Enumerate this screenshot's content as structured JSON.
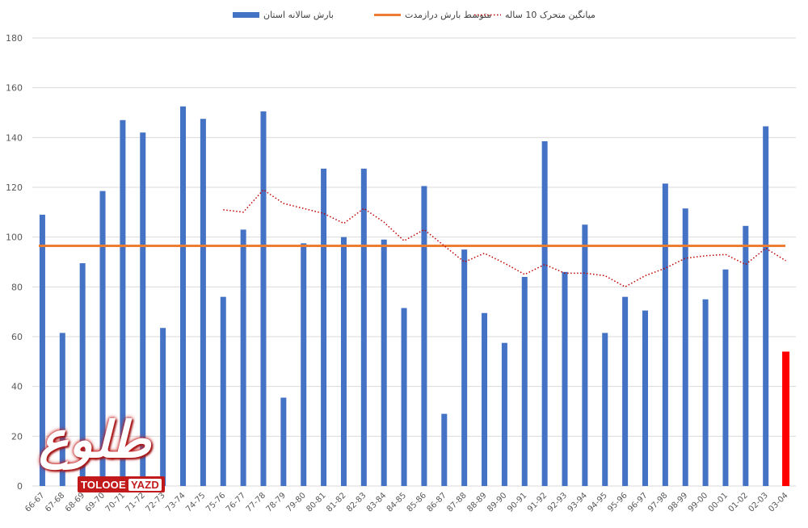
{
  "chart_data": {
    "type": "bar",
    "ylim": [
      0,
      180
    ],
    "yticks": [
      0,
      20,
      40,
      60,
      80,
      100,
      120,
      140,
      160,
      180
    ],
    "grid": true,
    "legend_position": "top",
    "categories": [
      "66-67",
      "67-68",
      "68-69",
      "69-70",
      "70-71",
      "71-72",
      "72-73",
      "73-74",
      "74-75",
      "75-76",
      "76-77",
      "77-78",
      "78-79",
      "79-80",
      "80-81",
      "81-82",
      "82-83",
      "83-84",
      "84-85",
      "85-86",
      "86-87",
      "87-88",
      "88-89",
      "89-90",
      "90-91",
      "91-92",
      "92-93",
      "93-94",
      "94-95",
      "95-96",
      "96-97",
      "97-98",
      "98-99",
      "99-00",
      "00-01",
      "01-02",
      "02-03",
      "03-04"
    ],
    "series": [
      {
        "name": "بارش سالانه استان",
        "kind": "bar",
        "color": "#4472c4",
        "highlight_last_color": "#ff0000",
        "values": [
          109,
          61.5,
          89.5,
          118.5,
          147,
          142,
          63.5,
          152.5,
          147.5,
          76,
          103,
          150.5,
          35.5,
          97.5,
          127.5,
          100,
          127.5,
          99,
          71.5,
          120.5,
          29,
          95,
          69.5,
          57.5,
          84,
          138.5,
          86,
          105,
          61.5,
          76,
          70.5,
          121.5,
          111.5,
          75,
          87,
          104.5,
          144.5,
          54
        ]
      },
      {
        "name": "متوسط بارش درازمدت",
        "kind": "hline",
        "color": "#ed7d31",
        "value": 96.5
      },
      {
        "name": "میانگین متحرک 10 ساله",
        "kind": "line",
        "color": "#c00000",
        "dash": "dotted",
        "values": [
          null,
          null,
          null,
          null,
          null,
          null,
          null,
          null,
          null,
          111,
          110,
          119,
          113.5,
          111.5,
          109.5,
          105.5,
          111.5,
          106,
          98.5,
          103,
          96.5,
          90,
          93.5,
          89.5,
          85,
          89,
          85.5,
          85.5,
          84.5,
          80,
          84.5,
          87.5,
          91.5,
          92.5,
          93,
          89,
          95.5,
          90.5
        ]
      }
    ]
  },
  "logo": {
    "glyph": "طلوع",
    "word_left": "TOLOOE",
    "word_right": "YAZD"
  }
}
